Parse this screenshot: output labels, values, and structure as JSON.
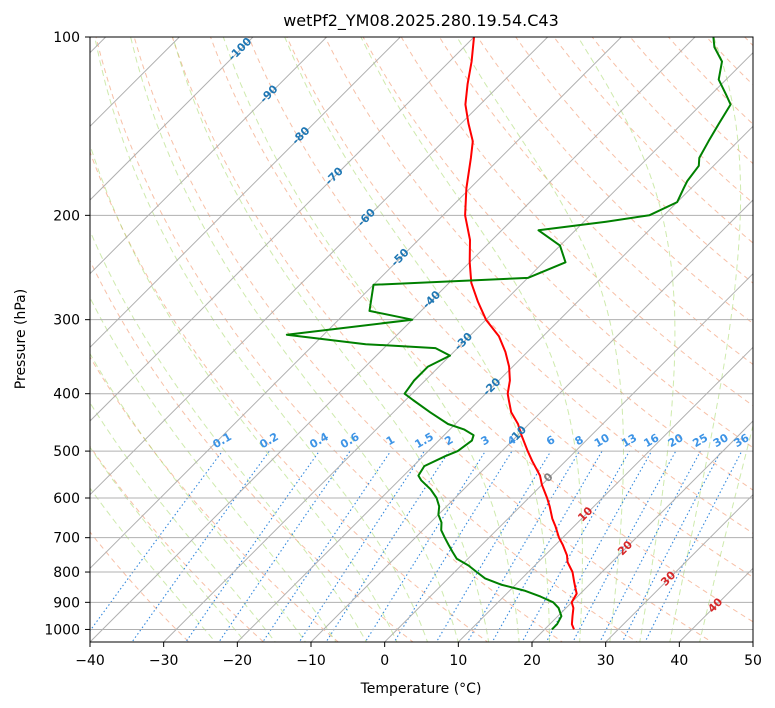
{
  "chart_data": {
    "type": "line",
    "title": "wetPf2_YM08.2025.280.19.54.C43",
    "xlabel": "Temperature (°C)",
    "ylabel": "Pressure (hPa)",
    "xlim": [
      -40,
      50
    ],
    "ylim": [
      1050,
      100
    ],
    "y_scale": "log",
    "grid": true,
    "x_ticks": [
      "−40",
      "−30",
      "−20",
      "−10",
      "0",
      "10",
      "20",
      "30",
      "40",
      "50"
    ],
    "y_ticks": [
      "100",
      "200",
      "300",
      "400",
      "500",
      "600",
      "700",
      "800",
      "900",
      "1000"
    ],
    "isotherm_labels": [
      "-100",
      "-90",
      "-80",
      "-70",
      "-60",
      "-50",
      "-40",
      "-30",
      "-20",
      "-10",
      "0",
      "10",
      "20",
      "30",
      "40"
    ],
    "mixing_ratio_labels": [
      "0.1",
      "0.2",
      "0.4",
      "0.6",
      "1",
      "1.5",
      "2",
      "3",
      "4",
      "6",
      "8",
      "10",
      "13",
      "16",
      "20",
      "25",
      "30",
      "36"
    ],
    "series": [
      {
        "color": "#ff0000",
        "points": [
          [
            1000,
            24
          ],
          [
            980,
            23
          ],
          [
            950,
            22
          ],
          [
            920,
            21
          ],
          [
            900,
            20
          ],
          [
            870,
            19.5
          ],
          [
            850,
            18.5
          ],
          [
            830,
            17.5
          ],
          [
            800,
            16
          ],
          [
            770,
            14
          ],
          [
            750,
            13
          ],
          [
            720,
            11
          ],
          [
            700,
            9.5
          ],
          [
            670,
            7.5
          ],
          [
            650,
            6
          ],
          [
            620,
            4
          ],
          [
            600,
            2.5
          ],
          [
            570,
            0
          ],
          [
            550,
            -1.5
          ],
          [
            520,
            -4.5
          ],
          [
            500,
            -6.5
          ],
          [
            470,
            -9.5
          ],
          [
            450,
            -11.5
          ],
          [
            430,
            -14
          ],
          [
            410,
            -16
          ],
          [
            400,
            -17
          ],
          [
            380,
            -18.5
          ],
          [
            360,
            -20.5
          ],
          [
            340,
            -23
          ],
          [
            320,
            -26
          ],
          [
            300,
            -30
          ],
          [
            280,
            -33.5
          ],
          [
            260,
            -37
          ],
          [
            240,
            -40
          ],
          [
            220,
            -43
          ],
          [
            200,
            -47
          ],
          [
            180,
            -50.5
          ],
          [
            160,
            -54
          ],
          [
            150,
            -56
          ],
          [
            140,
            -59
          ],
          [
            130,
            -62
          ],
          [
            120,
            -64.5
          ],
          [
            110,
            -67
          ],
          [
            100,
            -70
          ]
        ]
      },
      {
        "color": "#008000",
        "points": [
          [
            1000,
            21
          ],
          [
            980,
            21
          ],
          [
            950,
            20.5
          ],
          [
            920,
            19
          ],
          [
            900,
            17.5
          ],
          [
            880,
            15
          ],
          [
            860,
            12
          ],
          [
            840,
            8
          ],
          [
            820,
            5
          ],
          [
            800,
            3
          ],
          [
            780,
            1
          ],
          [
            760,
            -1.5
          ],
          [
            740,
            -3
          ],
          [
            720,
            -4.5
          ],
          [
            700,
            -6
          ],
          [
            680,
            -7.5
          ],
          [
            660,
            -8.5
          ],
          [
            640,
            -10
          ],
          [
            620,
            -11
          ],
          [
            600,
            -12.5
          ],
          [
            580,
            -14.5
          ],
          [
            560,
            -17
          ],
          [
            550,
            -18
          ],
          [
            530,
            -18.5
          ],
          [
            510,
            -17
          ],
          [
            500,
            -16
          ],
          [
            480,
            -15.5
          ],
          [
            470,
            -16
          ],
          [
            460,
            -18
          ],
          [
            450,
            -21
          ],
          [
            430,
            -25
          ],
          [
            410,
            -29
          ],
          [
            400,
            -31
          ],
          [
            380,
            -31.5
          ],
          [
            360,
            -31.5
          ],
          [
            345,
            -30
          ],
          [
            335,
            -33
          ],
          [
            330,
            -43
          ],
          [
            318,
            -55
          ],
          [
            300,
            -40
          ],
          [
            290,
            -47
          ],
          [
            262,
            -50
          ],
          [
            255,
            -30
          ],
          [
            240,
            -27
          ],
          [
            225,
            -30
          ],
          [
            212,
            -35
          ],
          [
            205,
            -27
          ],
          [
            200,
            -22
          ],
          [
            190,
            -20
          ],
          [
            180,
            -21
          ],
          [
            175,
            -21.5
          ],
          [
            165,
            -22
          ],
          [
            160,
            -23
          ],
          [
            150,
            -24
          ],
          [
            140,
            -25
          ],
          [
            130,
            -26
          ],
          [
            125,
            -28
          ],
          [
            118,
            -31
          ],
          [
            110,
            -33
          ],
          [
            104,
            -36
          ],
          [
            100,
            -37.5
          ]
        ]
      }
    ]
  }
}
